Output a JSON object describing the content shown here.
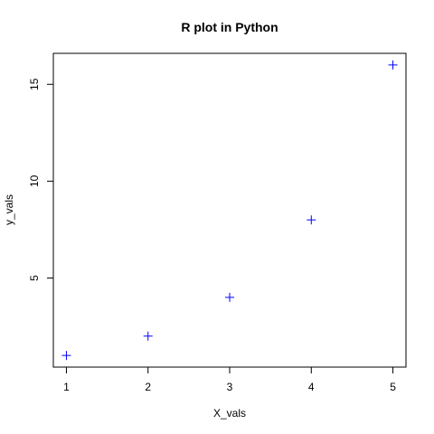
{
  "chart_data": {
    "type": "scatter",
    "title": "R plot in Python",
    "xlabel": "X_vals",
    "ylabel": "y_vals",
    "x": [
      1,
      2,
      3,
      4,
      5
    ],
    "y": [
      1,
      2,
      4,
      8,
      16
    ],
    "xlim": [
      0.84,
      5.16
    ],
    "ylim": [
      0.4,
      16.6
    ],
    "xticks": [
      1,
      2,
      3,
      4,
      5
    ],
    "yticks": [
      5,
      10,
      15
    ],
    "marker": "plus",
    "marker_color": "#0000ff",
    "grid": false,
    "legend": "none"
  }
}
